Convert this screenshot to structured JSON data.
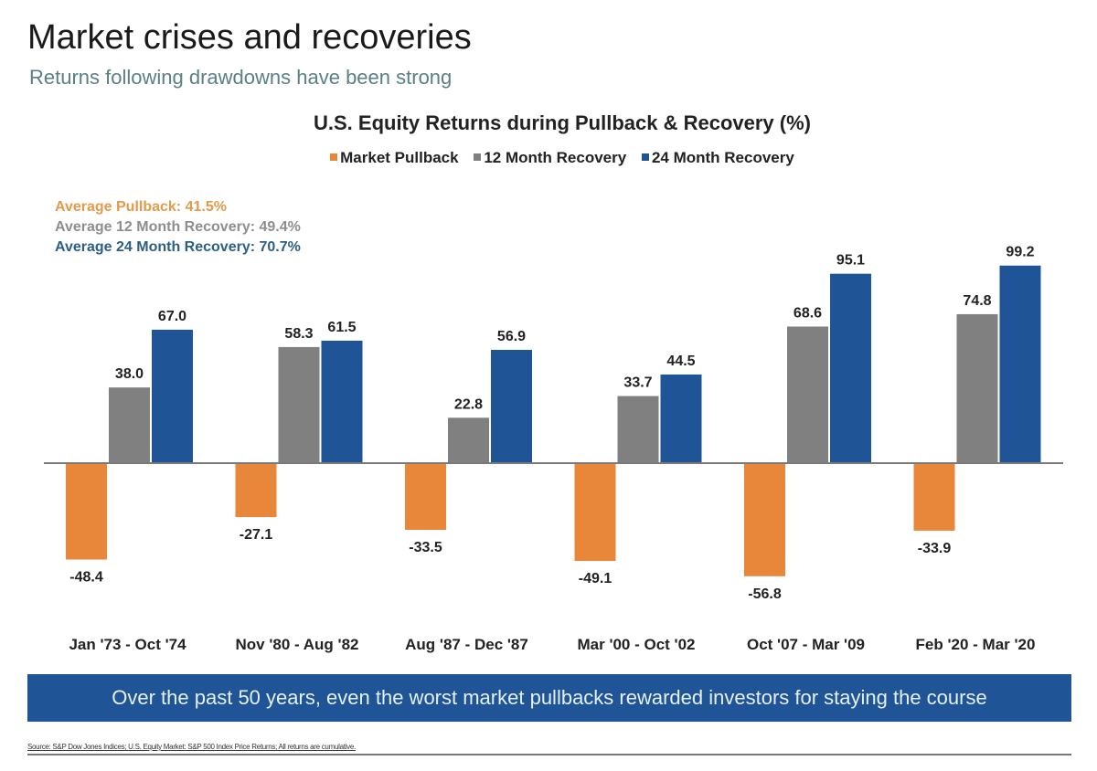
{
  "header": {
    "title": "Market crises and recoveries",
    "subtitle": "Returns following drawdowns have been strong"
  },
  "averages": [
    {
      "label": "Average Pullback: 41.5%",
      "color": "#e39a4a"
    },
    {
      "label": "Average 12 Month Recovery: 49.4%",
      "color": "#8e8e8e"
    },
    {
      "label": "Average 24 Month Recovery: 70.7%",
      "color": "#2c5f86"
    }
  ],
  "banner": "Over the past 50 years, even the worst market pullbacks rewarded investors for staying the course",
  "source": "Source: S&P Dow Jones Indices; U.S. Equity Market: S&P 500 Index Price Returns; All returns are cumulative.",
  "chart_data": {
    "type": "bar",
    "title": "U.S. Equity Returns during Pullback & Recovery (%)",
    "xlabel": "",
    "ylabel": "",
    "ylim": [
      -60,
      100
    ],
    "grid": false,
    "legend_position": "top-center",
    "categories": [
      "Jan '73 - Oct '74",
      "Nov '80 - Aug '82",
      "Aug '87 - Dec '87",
      "Mar '00 - Oct '02",
      "Oct '07 - Mar '09",
      "Feb '20 - Mar '20"
    ],
    "series": [
      {
        "name": "Market Pullback",
        "color": "#e8873a",
        "values": [
          -48.4,
          -27.1,
          -33.5,
          -49.1,
          -56.8,
          -33.9
        ]
      },
      {
        "name": "12 Month Recovery",
        "color": "#808080",
        "values": [
          38.0,
          58.3,
          22.8,
          33.7,
          68.6,
          74.8
        ]
      },
      {
        "name": "24 Month Recovery",
        "color": "#1f5596",
        "values": [
          67.0,
          61.5,
          56.9,
          44.5,
          95.1,
          99.2
        ]
      }
    ],
    "data_labels": [
      [
        "-48.4",
        "-27.1",
        "-33.5",
        "-49.1",
        "-56.8",
        "-33.9"
      ],
      [
        "38.0",
        "58.3",
        "22.8",
        "33.7",
        "68.6",
        "74.8"
      ],
      [
        "67.0",
        "61.5",
        "56.9",
        "44.5",
        "95.1",
        "99.2"
      ]
    ]
  }
}
